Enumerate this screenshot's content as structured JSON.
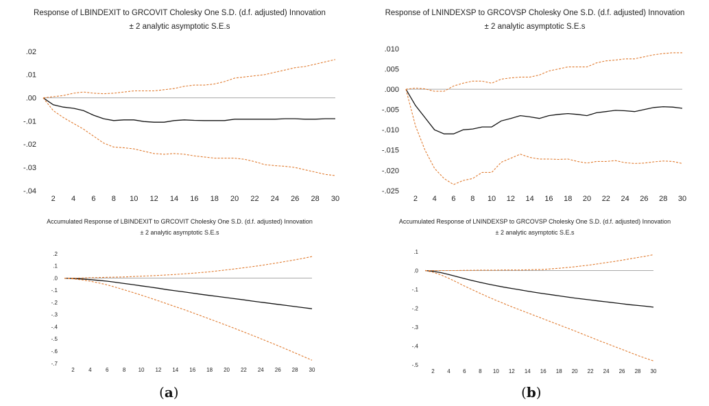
{
  "colors": {
    "response": "#111111",
    "band": "#e07a2e",
    "zero": "#a8a8a8"
  },
  "chart_data": [
    {
      "type": "line",
      "title": "Response of LBINDEXIT to GRCOVIT Cholesky One S.D. (d.f. adjusted) Innovation",
      "subtitle": "± 2 analytic asymptotic S.E.s",
      "ylim": [
        -0.04,
        0.02
      ],
      "yticks": [
        -0.04,
        -0.03,
        -0.02,
        -0.01,
        0.0,
        0.01,
        0.02
      ],
      "ytick_labels": [
        "-.04",
        "-.03",
        "-.02",
        "-.01",
        ".00",
        ".01",
        ".02"
      ],
      "xticks": [
        "2",
        "4",
        "6",
        "8",
        "10",
        "12",
        "14",
        "16",
        "18",
        "20",
        "22",
        "24",
        "26",
        "28",
        "30"
      ],
      "x": [
        1,
        2,
        3,
        4,
        5,
        6,
        7,
        8,
        9,
        10,
        11,
        12,
        13,
        14,
        15,
        16,
        17,
        18,
        19,
        20,
        21,
        22,
        23,
        24,
        25,
        26,
        27,
        28,
        29,
        30
      ],
      "series": [
        {
          "role": "response",
          "values": [
            0,
            -0.003,
            -0.004,
            -0.0045,
            -0.0055,
            -0.0075,
            -0.009,
            -0.0098,
            -0.0095,
            -0.0095,
            -0.0102,
            -0.0105,
            -0.0105,
            -0.0098,
            -0.0095,
            -0.0097,
            -0.0098,
            -0.0098,
            -0.0098,
            -0.0092,
            -0.0092,
            -0.0092,
            -0.0092,
            -0.0092,
            -0.009,
            -0.009,
            -0.0092,
            -0.0092,
            -0.009,
            -0.009
          ]
        },
        {
          "role": "upper",
          "values": [
            0,
            0.0005,
            0.001,
            0.002,
            0.0025,
            0.002,
            0.0018,
            0.002,
            0.0025,
            0.003,
            0.003,
            0.003,
            0.0035,
            0.004,
            0.005,
            0.0055,
            0.0055,
            0.006,
            0.007,
            0.0085,
            0.009,
            0.0095,
            0.01,
            0.011,
            0.012,
            0.013,
            0.0135,
            0.0145,
            0.0155,
            0.0165
          ]
        },
        {
          "role": "lower",
          "values": [
            0,
            -0.0055,
            -0.0085,
            -0.011,
            -0.0135,
            -0.0165,
            -0.0195,
            -0.0212,
            -0.0215,
            -0.022,
            -0.023,
            -0.024,
            -0.0243,
            -0.024,
            -0.0243,
            -0.025,
            -0.0255,
            -0.026,
            -0.026,
            -0.026,
            -0.0265,
            -0.0275,
            -0.0288,
            -0.0292,
            -0.0295,
            -0.03,
            -0.031,
            -0.032,
            -0.033,
            -0.0335
          ]
        }
      ]
    },
    {
      "type": "line",
      "title": "Response of LNINDEXSP to GRCOVSP Cholesky One S.D. (d.f. adjusted) Innovation",
      "subtitle": "± 2 analytic asymptotic S.E.s",
      "ylim": [
        -0.025,
        0.01
      ],
      "yticks": [
        -0.025,
        -0.02,
        -0.015,
        -0.01,
        -0.005,
        0.0,
        0.005,
        0.01
      ],
      "ytick_labels": [
        "-.025",
        "-.020",
        "-.015",
        "-.010",
        "-.005",
        ".000",
        ".005",
        ".010"
      ],
      "xticks": [
        "2",
        "4",
        "6",
        "8",
        "10",
        "12",
        "14",
        "16",
        "18",
        "20",
        "22",
        "24",
        "26",
        "28",
        "30"
      ],
      "x": [
        1,
        2,
        3,
        4,
        5,
        6,
        7,
        8,
        9,
        10,
        11,
        12,
        13,
        14,
        15,
        16,
        17,
        18,
        19,
        20,
        21,
        22,
        23,
        24,
        25,
        26,
        27,
        28,
        29,
        30
      ],
      "series": [
        {
          "role": "response",
          "values": [
            0,
            -0.004,
            -0.007,
            -0.01,
            -0.011,
            -0.011,
            -0.01,
            -0.0098,
            -0.0093,
            -0.0093,
            -0.0078,
            -0.0072,
            -0.0065,
            -0.0068,
            -0.0072,
            -0.0065,
            -0.0062,
            -0.006,
            -0.0062,
            -0.0065,
            -0.0058,
            -0.0055,
            -0.0052,
            -0.0053,
            -0.0055,
            -0.005,
            -0.0045,
            -0.0043,
            -0.0044,
            -0.0047
          ]
        },
        {
          "role": "upper",
          "values": [
            0,
            0.0003,
            0.0001,
            -0.0005,
            -0.0005,
            0.0008,
            0.0015,
            0.002,
            0.002,
            0.0015,
            0.0025,
            0.0028,
            0.003,
            0.003,
            0.0035,
            0.0045,
            0.005,
            0.0055,
            0.0055,
            0.0055,
            0.0065,
            0.007,
            0.0072,
            0.0075,
            0.0075,
            0.008,
            0.0085,
            0.0088,
            0.009,
            0.009
          ]
        },
        {
          "role": "lower",
          "values": [
            0,
            -0.009,
            -0.015,
            -0.0195,
            -0.022,
            -0.0235,
            -0.0225,
            -0.022,
            -0.0205,
            -0.0205,
            -0.018,
            -0.017,
            -0.016,
            -0.0168,
            -0.0172,
            -0.0172,
            -0.0173,
            -0.0172,
            -0.0178,
            -0.0182,
            -0.0178,
            -0.0178,
            -0.0176,
            -0.0181,
            -0.0183,
            -0.0182,
            -0.0179,
            -0.0177,
            -0.0178,
            -0.0183
          ]
        }
      ]
    },
    {
      "type": "line",
      "title": "Accumulated Response of LBINDEXIT to GRCOVIT Cholesky One S.D. (d.f. adjusted) Innovation",
      "subtitle": "± 2 analytic asymptotic S.E.s",
      "ylim": [
        -0.7,
        0.2
      ],
      "yticks": [
        -0.7,
        -0.6,
        -0.5,
        -0.4,
        -0.3,
        -0.2,
        -0.1,
        0.0,
        0.1,
        0.2
      ],
      "ytick_labels": [
        "-.7",
        "-.6",
        "-.5",
        "-.4",
        "-.3",
        "-.2",
        "-.1",
        ".0",
        ".1",
        ".2"
      ],
      "xticks": [
        "2",
        "4",
        "6",
        "8",
        "10",
        "12",
        "14",
        "16",
        "18",
        "20",
        "22",
        "24",
        "26",
        "28",
        "30"
      ],
      "x": [
        1,
        2,
        3,
        4,
        5,
        6,
        7,
        8,
        9,
        10,
        11,
        12,
        13,
        14,
        15,
        16,
        17,
        18,
        19,
        20,
        21,
        22,
        23,
        24,
        25,
        26,
        27,
        28,
        29,
        30
      ],
      "series": [
        {
          "role": "response",
          "values": [
            0,
            -0.003,
            -0.007,
            -0.012,
            -0.018,
            -0.025,
            -0.034,
            -0.044,
            -0.053,
            -0.063,
            -0.073,
            -0.083,
            -0.094,
            -0.104,
            -0.113,
            -0.123,
            -0.133,
            -0.142,
            -0.151,
            -0.16,
            -0.169,
            -0.178,
            -0.188,
            -0.197,
            -0.206,
            -0.215,
            -0.224,
            -0.233,
            -0.242,
            -0.251
          ]
        },
        {
          "role": "upper",
          "values": [
            0,
            0.0,
            0.001,
            0.003,
            0.005,
            0.007,
            0.008,
            0.01,
            0.013,
            0.016,
            0.019,
            0.022,
            0.026,
            0.03,
            0.035,
            0.04,
            0.046,
            0.052,
            0.06,
            0.068,
            0.076,
            0.085,
            0.094,
            0.104,
            0.115,
            0.126,
            0.138,
            0.15,
            0.163,
            0.177
          ]
        },
        {
          "role": "lower",
          "values": [
            0,
            -0.006,
            -0.014,
            -0.025,
            -0.039,
            -0.055,
            -0.075,
            -0.096,
            -0.117,
            -0.139,
            -0.162,
            -0.186,
            -0.21,
            -0.234,
            -0.258,
            -0.283,
            -0.309,
            -0.335,
            -0.361,
            -0.387,
            -0.414,
            -0.441,
            -0.469,
            -0.497,
            -0.525,
            -0.554,
            -0.583,
            -0.613,
            -0.643,
            -0.673
          ]
        }
      ]
    },
    {
      "type": "line",
      "title": "Accumulated Response of LNINDEXSP to GRCOVSP Cholesky One S.D. (d.f. adjusted) Innovation",
      "subtitle": "± 2 analytic asymptotic S.E.s",
      "ylim": [
        -0.5,
        0.1
      ],
      "yticks": [
        -0.5,
        -0.4,
        -0.3,
        -0.2,
        -0.1,
        0.0,
        0.1
      ],
      "ytick_labels": [
        "-.5",
        "-.4",
        "-.3",
        "-.2",
        "-.1",
        ".0",
        ".1"
      ],
      "xticks": [
        "2",
        "4",
        "6",
        "8",
        "10",
        "12",
        "14",
        "16",
        "18",
        "20",
        "22",
        "24",
        "26",
        "28",
        "30"
      ],
      "x": [
        1,
        2,
        3,
        4,
        5,
        6,
        7,
        8,
        9,
        10,
        11,
        12,
        13,
        14,
        15,
        16,
        17,
        18,
        19,
        20,
        21,
        22,
        23,
        24,
        25,
        26,
        27,
        28,
        29,
        30
      ],
      "series": [
        {
          "role": "response",
          "values": [
            0,
            -0.004,
            -0.011,
            -0.021,
            -0.032,
            -0.043,
            -0.053,
            -0.063,
            -0.072,
            -0.08,
            -0.088,
            -0.095,
            -0.102,
            -0.109,
            -0.116,
            -0.122,
            -0.128,
            -0.134,
            -0.14,
            -0.146,
            -0.151,
            -0.156,
            -0.161,
            -0.166,
            -0.171,
            -0.176,
            -0.181,
            -0.185,
            -0.189,
            -0.194
          ]
        },
        {
          "role": "upper",
          "values": [
            0,
            0.0,
            0.0,
            0.0,
            0.0,
            0.001,
            0.001,
            0.002,
            0.002,
            0.002,
            0.003,
            0.003,
            0.003,
            0.004,
            0.005,
            0.006,
            0.009,
            0.012,
            0.016,
            0.02,
            0.025,
            0.03,
            0.036,
            0.042,
            0.048,
            0.055,
            0.062,
            0.069,
            0.076,
            0.084
          ]
        },
        {
          "role": "lower",
          "values": [
            0,
            -0.009,
            -0.023,
            -0.041,
            -0.061,
            -0.082,
            -0.102,
            -0.121,
            -0.14,
            -0.158,
            -0.175,
            -0.192,
            -0.208,
            -0.224,
            -0.24,
            -0.256,
            -0.272,
            -0.288,
            -0.304,
            -0.32,
            -0.337,
            -0.353,
            -0.37,
            -0.386,
            -0.402,
            -0.418,
            -0.434,
            -0.45,
            -0.465,
            -0.479
          ]
        }
      ]
    }
  ],
  "captions": [
    {
      "open": "(",
      "letter": "a",
      "close": ")"
    },
    {
      "open": "(",
      "letter": "b",
      "close": ")"
    }
  ]
}
